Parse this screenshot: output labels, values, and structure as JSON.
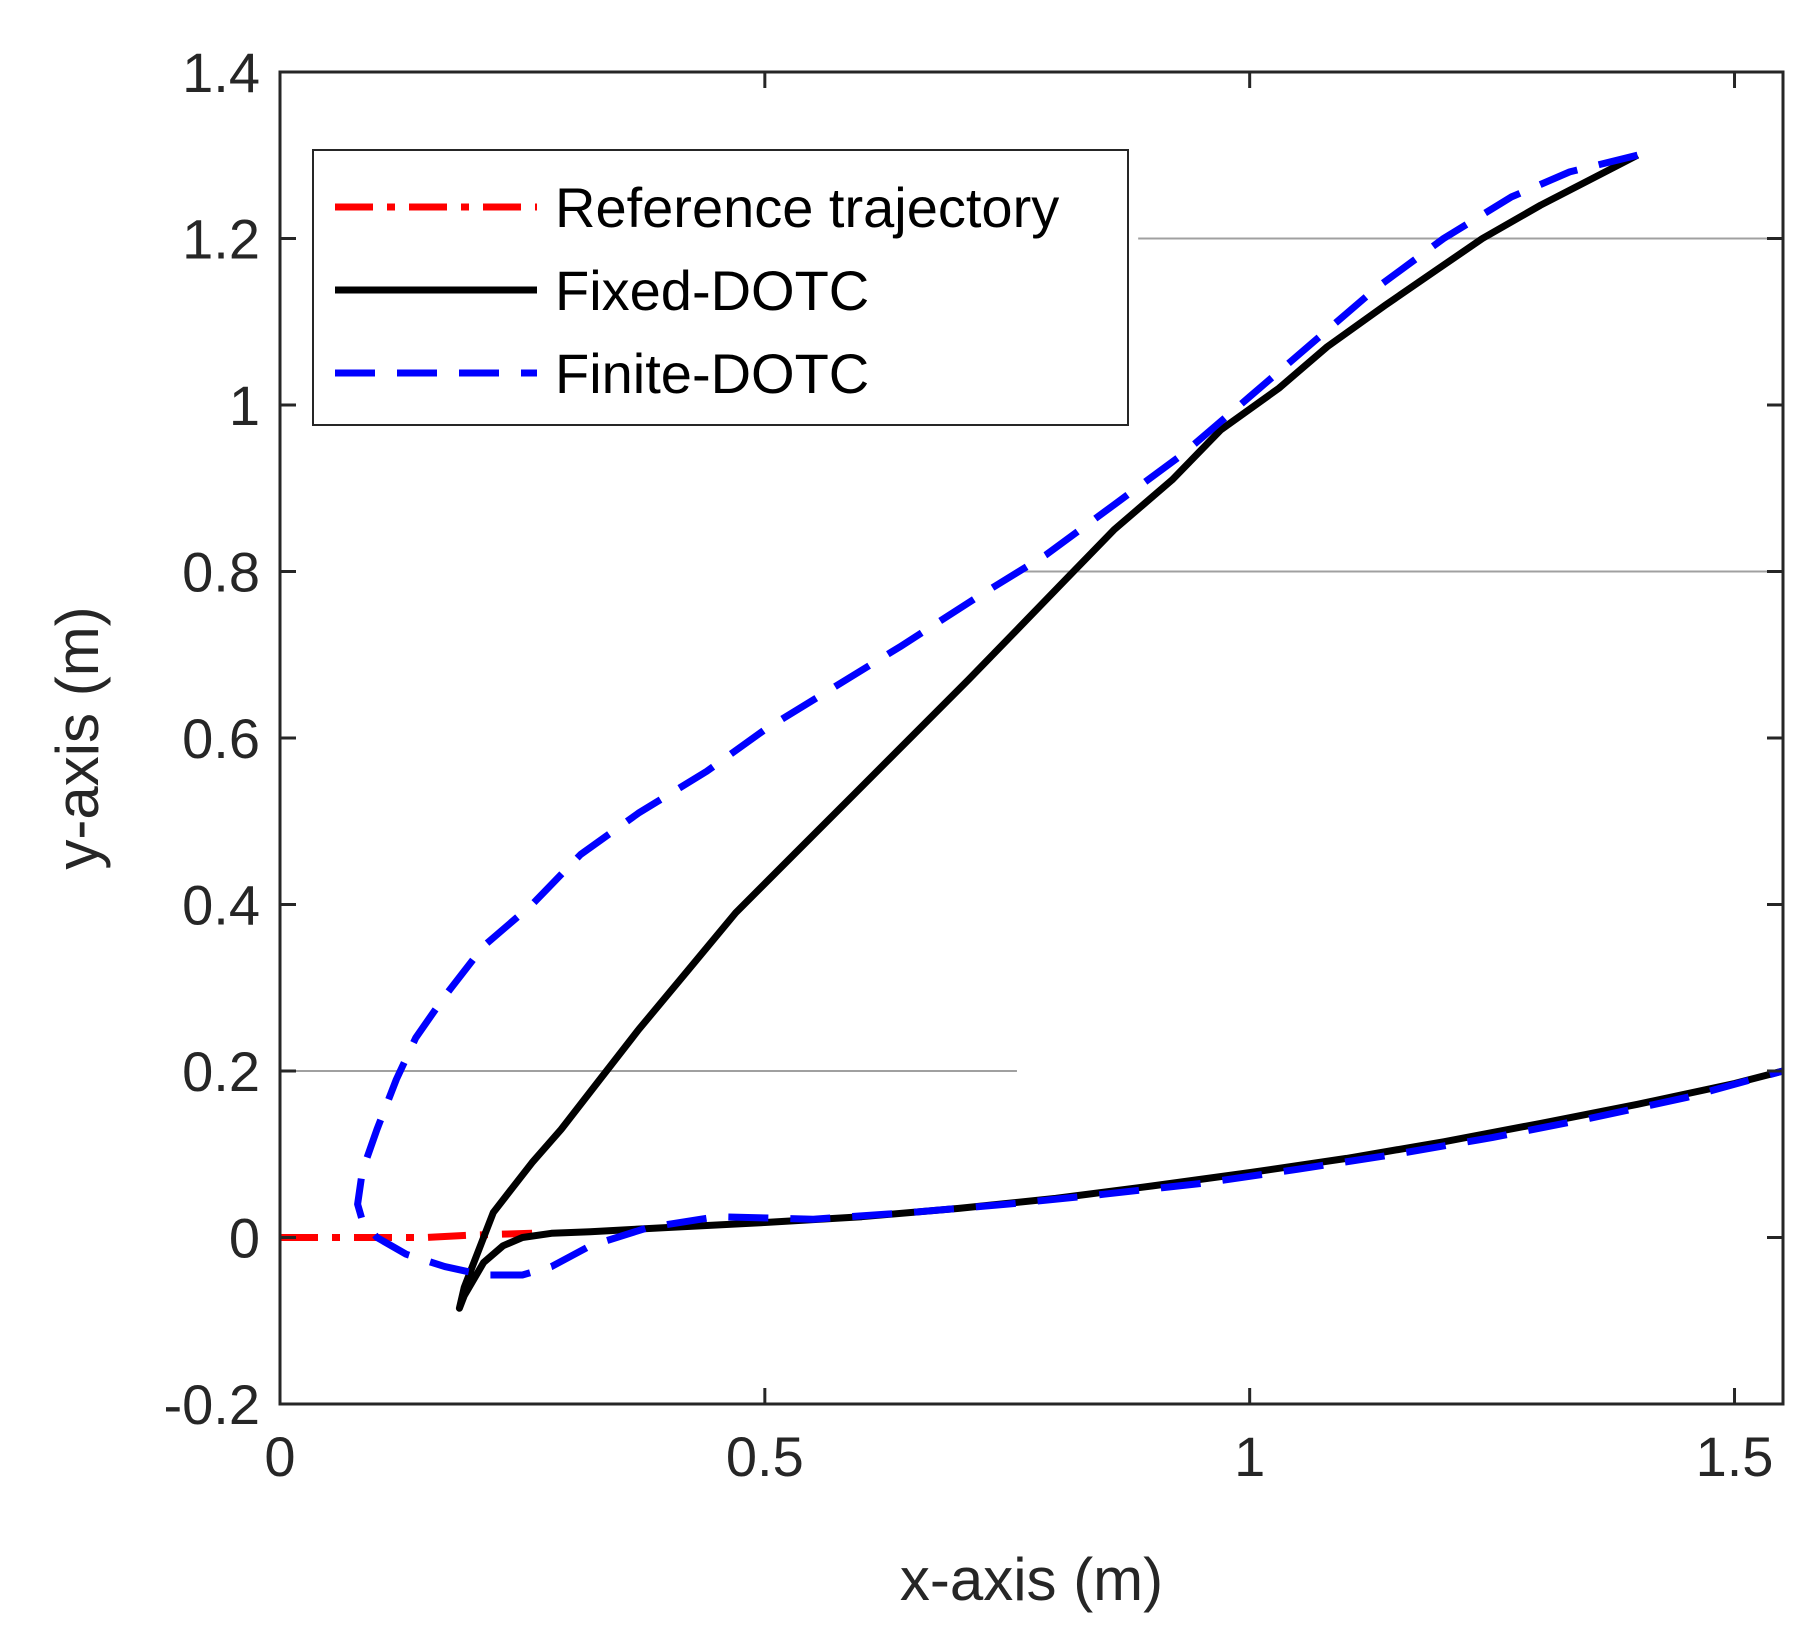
{
  "chart_data": {
    "type": "line",
    "title": "",
    "xlabel": "x-axis (m)",
    "ylabel": "y-axis (m)",
    "xlim": [
      0,
      1.55
    ],
    "ylim": [
      -0.2,
      1.4
    ],
    "xticks": [
      0,
      0.5,
      1,
      1.5
    ],
    "xtick_labels": [
      "0",
      "0.5",
      "1",
      "1.5"
    ],
    "yticks": [
      -0.2,
      0,
      0.2,
      0.4,
      0.6,
      0.8,
      1,
      1.2,
      1.4
    ],
    "ytick_labels": [
      "-0.2",
      "0",
      "0.2",
      "0.4",
      "0.6",
      "0.8",
      "1",
      "1.2",
      "1.4"
    ],
    "grid": false,
    "legend_position": "top-left",
    "faint_reference_lines": [
      {
        "y": 1.2,
        "x_from": 0.885,
        "x_to": 1.55
      },
      {
        "y": 0.8,
        "x_from": 0.76,
        "x_to": 1.55
      },
      {
        "y": 0.2,
        "x_from": 0.0,
        "x_to": 0.76
      }
    ],
    "series": [
      {
        "name": "Reference trajectory",
        "color": "#ff0000",
        "style": "dash-dot",
        "x": [
          0.0,
          0.05,
          0.1,
          0.15,
          0.2,
          0.26
        ],
        "y": [
          0.0,
          0.0,
          0.0,
          0.0,
          0.003,
          0.005
        ]
      },
      {
        "name": "Fixed-DOTC",
        "color": "#000000",
        "style": "solid",
        "x": [
          1.4,
          1.35,
          1.3,
          1.24,
          1.19,
          1.14,
          1.08,
          1.03,
          0.97,
          0.92,
          0.86,
          0.81,
          0.76,
          0.71,
          0.65,
          0.59,
          0.53,
          0.47,
          0.42,
          0.37,
          0.33,
          0.29,
          0.26,
          0.24,
          0.22,
          0.21,
          0.2,
          0.19,
          0.185,
          0.19,
          0.2,
          0.21,
          0.23,
          0.25,
          0.28,
          0.32,
          0.4,
          0.5,
          0.6,
          0.7,
          0.8,
          0.9,
          1.0,
          1.1,
          1.2,
          1.3,
          1.4,
          1.5,
          1.55
        ],
        "y": [
          1.3,
          1.27,
          1.24,
          1.2,
          1.16,
          1.12,
          1.07,
          1.02,
          0.97,
          0.91,
          0.85,
          0.79,
          0.73,
          0.67,
          0.6,
          0.53,
          0.46,
          0.39,
          0.32,
          0.25,
          0.19,
          0.13,
          0.09,
          0.06,
          0.03,
          0.0,
          -0.03,
          -0.06,
          -0.085,
          -0.07,
          -0.05,
          -0.03,
          -0.01,
          0.0,
          0.005,
          0.007,
          0.012,
          0.018,
          0.025,
          0.035,
          0.047,
          0.062,
          0.078,
          0.095,
          0.115,
          0.137,
          0.16,
          0.185,
          0.2
        ]
      },
      {
        "name": "Finite-DOTC",
        "color": "#0000ff",
        "style": "dashed",
        "x": [
          1.4,
          1.33,
          1.27,
          1.2,
          1.13,
          1.07,
          1.0,
          0.93,
          0.86,
          0.79,
          0.72,
          0.64,
          0.57,
          0.5,
          0.44,
          0.37,
          0.31,
          0.26,
          0.21,
          0.17,
          0.14,
          0.12,
          0.1,
          0.085,
          0.08,
          0.085,
          0.1,
          0.13,
          0.17,
          0.21,
          0.25,
          0.28,
          0.32,
          0.38,
          0.45,
          0.55,
          0.65,
          0.75,
          0.85,
          0.95,
          1.05,
          1.15,
          1.25,
          1.35,
          1.45,
          1.55
        ],
        "y": [
          1.3,
          1.28,
          1.25,
          1.2,
          1.14,
          1.08,
          1.01,
          0.94,
          0.88,
          0.82,
          0.77,
          0.71,
          0.66,
          0.61,
          0.56,
          0.51,
          0.46,
          0.4,
          0.35,
          0.29,
          0.24,
          0.19,
          0.13,
          0.08,
          0.04,
          0.02,
          0.0,
          -0.02,
          -0.035,
          -0.045,
          -0.045,
          -0.035,
          -0.01,
          0.012,
          0.025,
          0.022,
          0.03,
          0.04,
          0.052,
          0.065,
          0.082,
          0.1,
          0.12,
          0.143,
          0.168,
          0.2
        ]
      }
    ]
  }
}
